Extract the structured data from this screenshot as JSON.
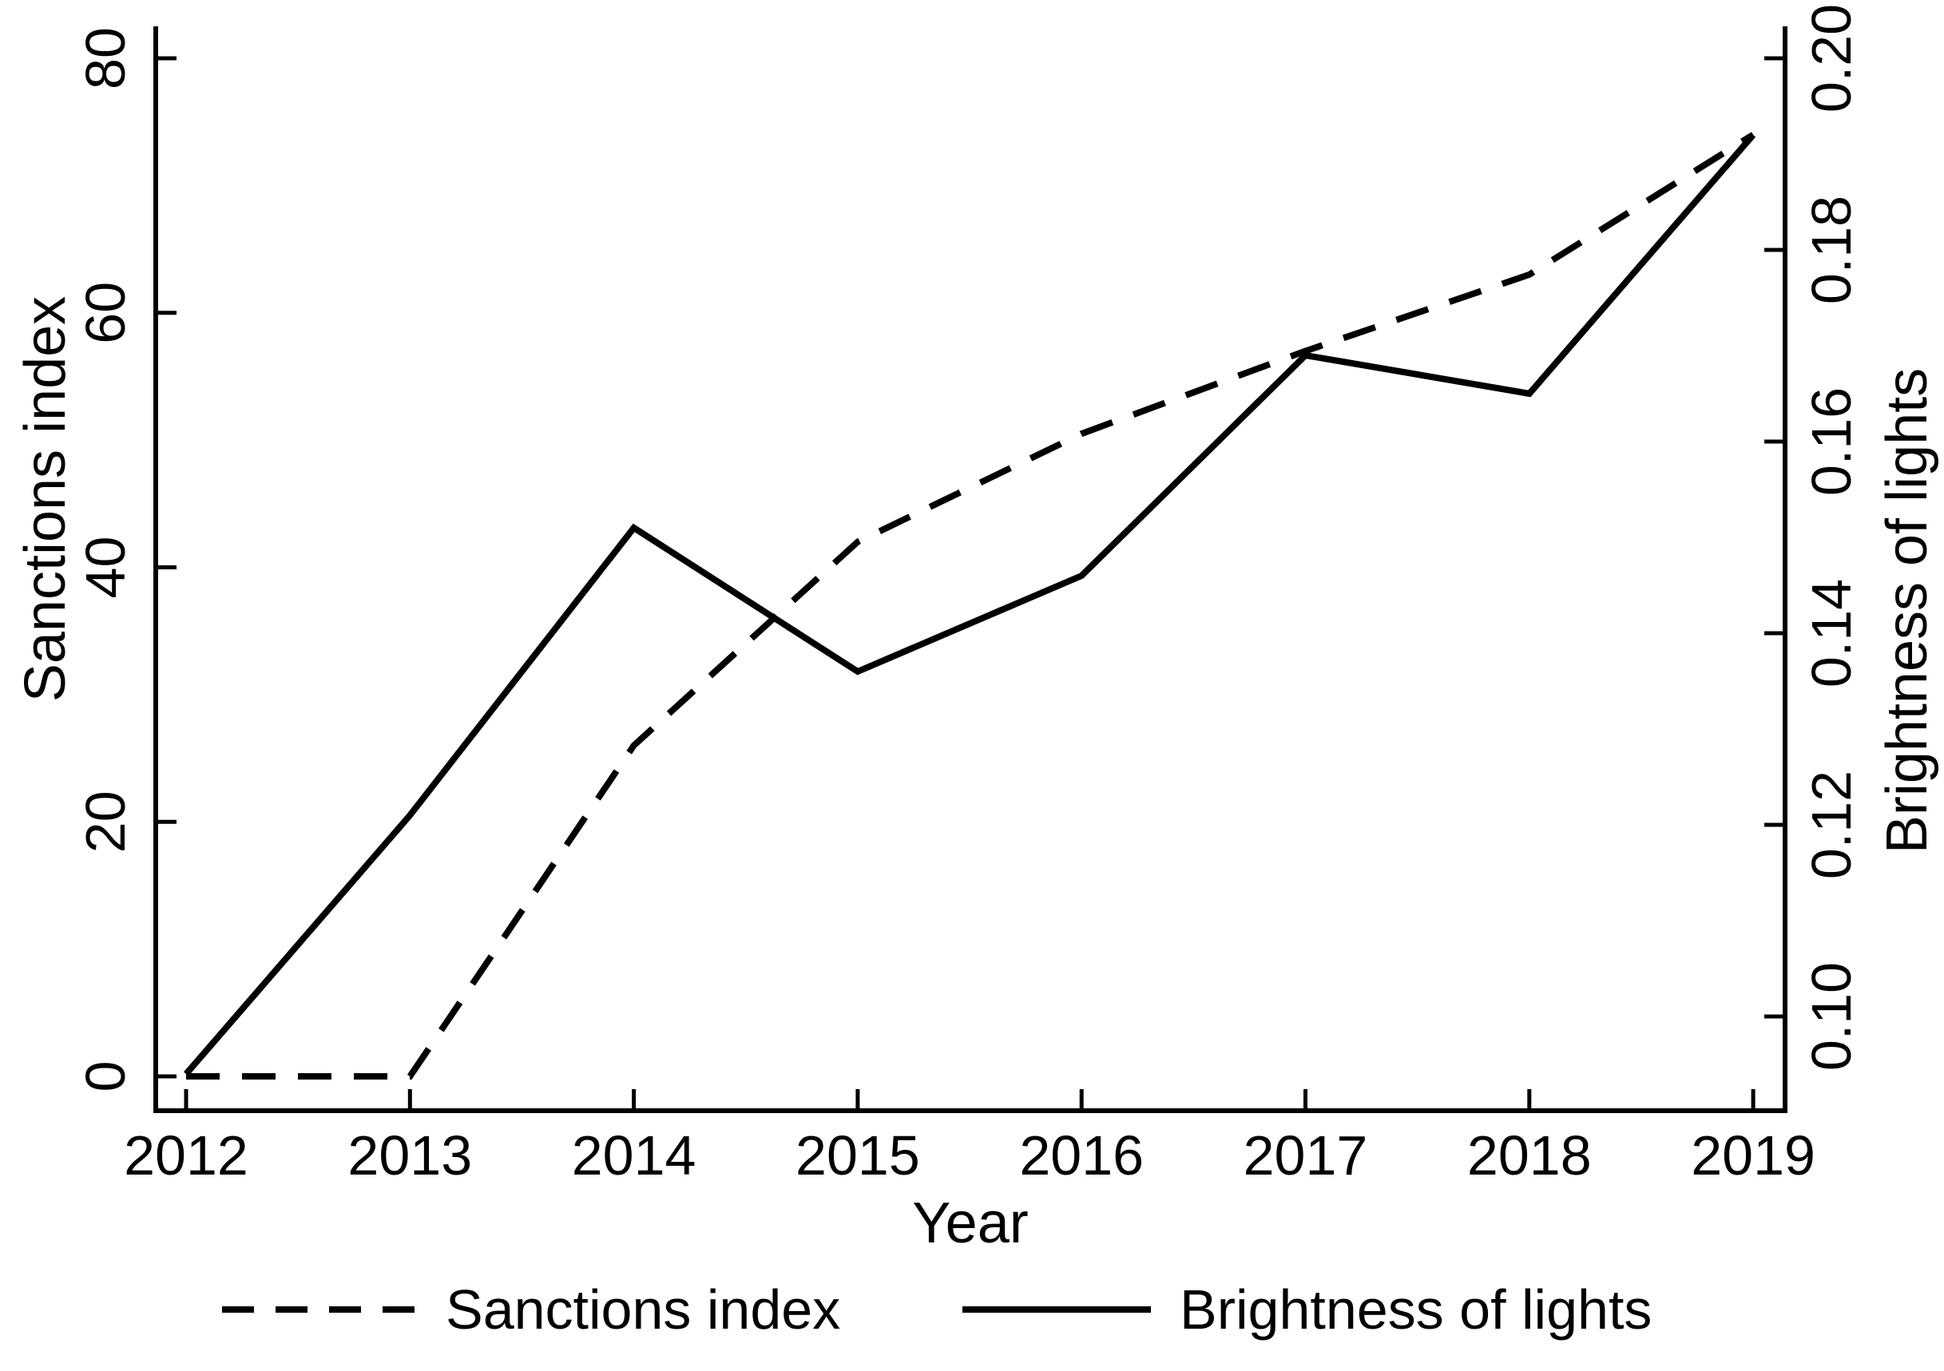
{
  "chart_data": {
    "type": "line",
    "title": "",
    "xlabel": "Year",
    "x": [
      2012,
      2013,
      2014,
      2015,
      2016,
      2017,
      2018,
      2019
    ],
    "x_tick_labels": [
      "2012",
      "2013",
      "2014",
      "2015",
      "2016",
      "2017",
      "2018",
      "2019"
    ],
    "left_axis": {
      "label": "Sanctions index",
      "ticks": [
        0,
        20,
        40,
        60,
        80
      ],
      "tick_labels": [
        "0",
        "20",
        "40",
        "60",
        "80"
      ],
      "range": [
        0,
        80
      ]
    },
    "right_axis": {
      "label": "Brightness of lights",
      "ticks": [
        0.1,
        0.12,
        0.14,
        0.16,
        0.18,
        0.2
      ],
      "tick_labels": [
        "0.10",
        "0.12",
        "0.14",
        "0.16",
        "0.18",
        "0.20"
      ],
      "range": [
        0.1,
        0.2
      ]
    },
    "series": [
      {
        "name": "Sanctions index",
        "axis": "left",
        "style": "dashed",
        "values": [
          0,
          0,
          26,
          42,
          50.5,
          57,
          63,
          74
        ]
      },
      {
        "name": "Brightness of lights",
        "axis": "right",
        "style": "solid",
        "values": [
          0.094,
          0.121,
          0.151,
          0.136,
          0.146,
          0.169,
          0.165,
          0.192
        ]
      }
    ],
    "legend": [
      {
        "label": "Sanctions index",
        "style": "dashed"
      },
      {
        "label": "Brightness of lights",
        "style": "solid"
      }
    ],
    "legend_position": "bottom",
    "grid": false,
    "line_color": "#000000",
    "background": "#ffffff"
  }
}
